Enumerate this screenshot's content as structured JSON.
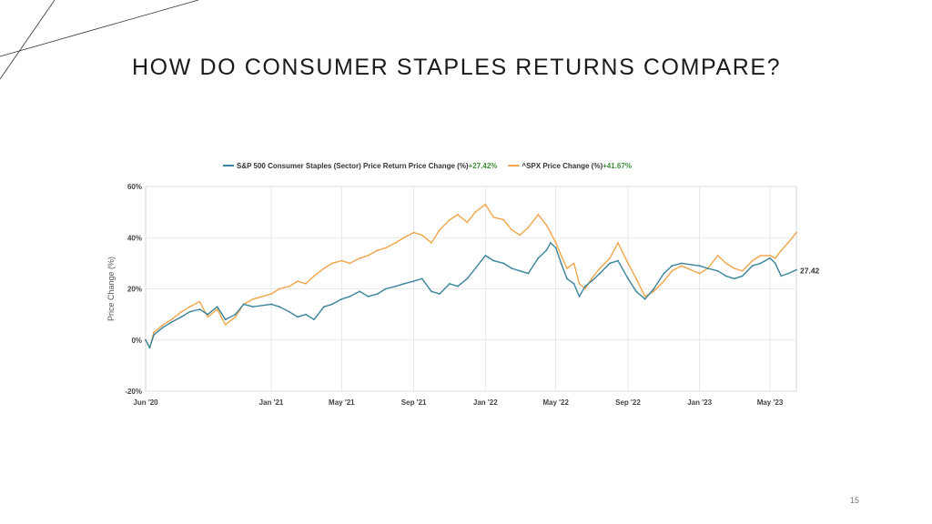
{
  "slide": {
    "title": "HOW DO CONSUMER STAPLES RETURNS COMPARE?",
    "page_number": "15"
  },
  "colors": {
    "staples": "#3a849b",
    "spx": "#f0a54a",
    "gain": "#3f8f3a",
    "grid": "#e2e2e2",
    "axis_text": "#444444"
  },
  "chart_data": {
    "type": "line",
    "title": "",
    "xlabel": "",
    "ylabel": "Price Change (%)",
    "ylim": [
      -20,
      60
    ],
    "y_ticks": [
      -20,
      0,
      20,
      40,
      60
    ],
    "y_tick_labels": [
      "-20%",
      "0%",
      "20%",
      "40%",
      "60%"
    ],
    "x_ticks": [
      "2020-06-01",
      "2021-01-01",
      "2021-05-01",
      "2021-09-01",
      "2022-01-01",
      "2022-05-01",
      "2022-09-01",
      "2023-01-01",
      "2023-05-01"
    ],
    "x_tick_labels": [
      "Jun '20",
      "Jan '21",
      "May '21",
      "Sep '21",
      "Jan '22",
      "May '22",
      "Sep '22",
      "Jan '23",
      "May '23"
    ],
    "x_range": [
      "2020-06-01",
      "2023-06-15"
    ],
    "grid": true,
    "legend_position": "top",
    "end_label": "27.42",
    "series": [
      {
        "name": "S&P 500 Consumer Staples (Sector) Price Return Price Change (%)",
        "change_label": "+27.42%",
        "points": [
          [
            "2020-06-01",
            0
          ],
          [
            "2020-06-08",
            -3
          ],
          [
            "2020-06-15",
            2
          ],
          [
            "2020-07-01",
            5
          ],
          [
            "2020-07-15",
            7
          ],
          [
            "2020-08-01",
            9
          ],
          [
            "2020-08-15",
            11
          ],
          [
            "2020-09-01",
            12
          ],
          [
            "2020-09-15",
            10
          ],
          [
            "2020-10-01",
            13
          ],
          [
            "2020-10-15",
            8
          ],
          [
            "2020-11-01",
            10
          ],
          [
            "2020-11-15",
            14
          ],
          [
            "2020-12-01",
            13
          ],
          [
            "2021-01-01",
            14
          ],
          [
            "2021-01-15",
            13
          ],
          [
            "2021-02-01",
            11
          ],
          [
            "2021-02-15",
            9
          ],
          [
            "2021-03-01",
            10
          ],
          [
            "2021-03-15",
            8
          ],
          [
            "2021-04-01",
            13
          ],
          [
            "2021-04-15",
            14
          ],
          [
            "2021-05-01",
            16
          ],
          [
            "2021-05-15",
            17
          ],
          [
            "2021-06-01",
            19
          ],
          [
            "2021-06-15",
            17
          ],
          [
            "2021-07-01",
            18
          ],
          [
            "2021-07-15",
            20
          ],
          [
            "2021-08-01",
            21
          ],
          [
            "2021-08-15",
            22
          ],
          [
            "2021-09-01",
            23
          ],
          [
            "2021-09-15",
            24
          ],
          [
            "2021-10-01",
            19
          ],
          [
            "2021-10-15",
            18
          ],
          [
            "2021-11-01",
            22
          ],
          [
            "2021-11-15",
            21
          ],
          [
            "2021-12-01",
            24
          ],
          [
            "2021-12-15",
            28
          ],
          [
            "2022-01-01",
            33
          ],
          [
            "2022-01-15",
            31
          ],
          [
            "2022-02-01",
            30
          ],
          [
            "2022-02-15",
            28
          ],
          [
            "2022-03-01",
            27
          ],
          [
            "2022-03-15",
            26
          ],
          [
            "2022-04-01",
            32
          ],
          [
            "2022-04-15",
            35
          ],
          [
            "2022-04-22",
            38
          ],
          [
            "2022-05-01",
            36
          ],
          [
            "2022-05-10",
            30
          ],
          [
            "2022-05-20",
            24
          ],
          [
            "2022-06-01",
            22
          ],
          [
            "2022-06-10",
            17
          ],
          [
            "2022-06-20",
            21
          ],
          [
            "2022-07-01",
            23
          ],
          [
            "2022-07-15",
            26
          ],
          [
            "2022-08-01",
            30
          ],
          [
            "2022-08-15",
            31
          ],
          [
            "2022-09-01",
            24
          ],
          [
            "2022-09-15",
            19
          ],
          [
            "2022-09-30",
            16
          ],
          [
            "2022-10-15",
            20
          ],
          [
            "2022-11-01",
            26
          ],
          [
            "2022-11-15",
            29
          ],
          [
            "2022-12-01",
            30
          ],
          [
            "2023-01-01",
            29
          ],
          [
            "2023-01-15",
            28
          ],
          [
            "2023-02-01",
            27
          ],
          [
            "2023-02-15",
            25
          ],
          [
            "2023-03-01",
            24
          ],
          [
            "2023-03-15",
            25
          ],
          [
            "2023-04-01",
            29
          ],
          [
            "2023-04-15",
            30
          ],
          [
            "2023-05-01",
            32
          ],
          [
            "2023-05-10",
            30
          ],
          [
            "2023-05-20",
            25
          ],
          [
            "2023-06-01",
            26
          ],
          [
            "2023-06-15",
            27.42
          ]
        ]
      },
      {
        "name": "^SPX Price Change (%)",
        "change_label": "+41.67%",
        "points": [
          [
            "2020-06-01",
            0
          ],
          [
            "2020-06-08",
            -3
          ],
          [
            "2020-06-15",
            3
          ],
          [
            "2020-07-01",
            6
          ],
          [
            "2020-07-15",
            8
          ],
          [
            "2020-08-01",
            11
          ],
          [
            "2020-08-15",
            13
          ],
          [
            "2020-09-01",
            15
          ],
          [
            "2020-09-15",
            9
          ],
          [
            "2020-10-01",
            12
          ],
          [
            "2020-10-15",
            6
          ],
          [
            "2020-11-01",
            9
          ],
          [
            "2020-11-15",
            14
          ],
          [
            "2020-12-01",
            16
          ],
          [
            "2021-01-01",
            18
          ],
          [
            "2021-01-15",
            20
          ],
          [
            "2021-02-01",
            21
          ],
          [
            "2021-02-15",
            23
          ],
          [
            "2021-03-01",
            22
          ],
          [
            "2021-03-15",
            25
          ],
          [
            "2021-04-01",
            28
          ],
          [
            "2021-04-15",
            30
          ],
          [
            "2021-05-01",
            31
          ],
          [
            "2021-05-15",
            30
          ],
          [
            "2021-06-01",
            32
          ],
          [
            "2021-06-15",
            33
          ],
          [
            "2021-07-01",
            35
          ],
          [
            "2021-07-15",
            36
          ],
          [
            "2021-08-01",
            38
          ],
          [
            "2021-08-15",
            40
          ],
          [
            "2021-09-01",
            42
          ],
          [
            "2021-09-15",
            41
          ],
          [
            "2021-10-01",
            38
          ],
          [
            "2021-10-15",
            43
          ],
          [
            "2021-11-01",
            47
          ],
          [
            "2021-11-15",
            49
          ],
          [
            "2021-12-01",
            46
          ],
          [
            "2021-12-15",
            50
          ],
          [
            "2022-01-01",
            53
          ],
          [
            "2022-01-15",
            48
          ],
          [
            "2022-02-01",
            47
          ],
          [
            "2022-02-15",
            43
          ],
          [
            "2022-03-01",
            41
          ],
          [
            "2022-03-15",
            44
          ],
          [
            "2022-04-01",
            49
          ],
          [
            "2022-04-15",
            45
          ],
          [
            "2022-04-22",
            42
          ],
          [
            "2022-05-01",
            38
          ],
          [
            "2022-05-10",
            33
          ],
          [
            "2022-05-20",
            28
          ],
          [
            "2022-06-01",
            30
          ],
          [
            "2022-06-10",
            22
          ],
          [
            "2022-06-20",
            20
          ],
          [
            "2022-07-01",
            24
          ],
          [
            "2022-07-15",
            28
          ],
          [
            "2022-08-01",
            32
          ],
          [
            "2022-08-15",
            38
          ],
          [
            "2022-09-01",
            30
          ],
          [
            "2022-09-15",
            24
          ],
          [
            "2022-09-30",
            17
          ],
          [
            "2022-10-15",
            19
          ],
          [
            "2022-11-01",
            23
          ],
          [
            "2022-11-15",
            27
          ],
          [
            "2022-12-01",
            29
          ],
          [
            "2023-01-01",
            26
          ],
          [
            "2023-01-15",
            28
          ],
          [
            "2023-02-01",
            33
          ],
          [
            "2023-02-15",
            30
          ],
          [
            "2023-03-01",
            28
          ],
          [
            "2023-03-15",
            27
          ],
          [
            "2023-04-01",
            31
          ],
          [
            "2023-04-15",
            33
          ],
          [
            "2023-05-01",
            33
          ],
          [
            "2023-05-10",
            32
          ],
          [
            "2023-05-20",
            35
          ],
          [
            "2023-06-01",
            38
          ],
          [
            "2023-06-15",
            42
          ]
        ]
      }
    ]
  }
}
